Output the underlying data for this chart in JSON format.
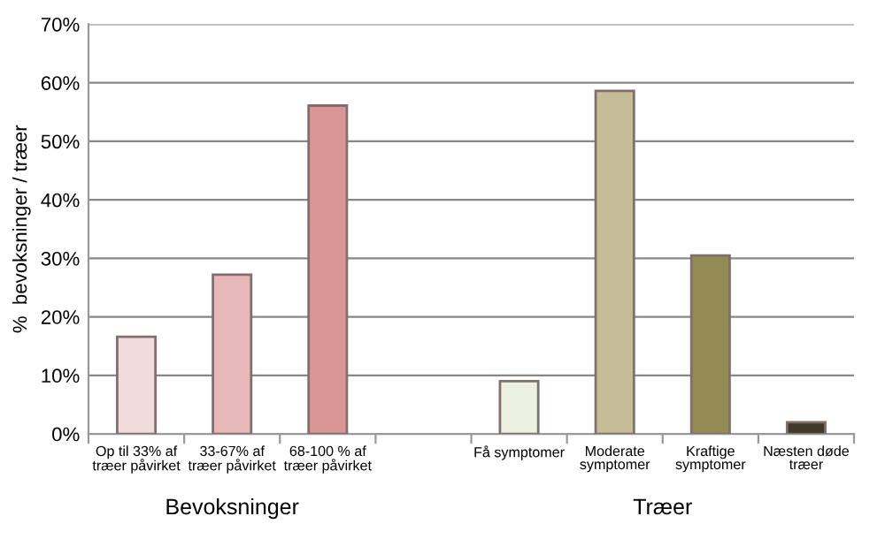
{
  "chart_data": {
    "type": "bar",
    "categories": [
      "Op til 33% af\ntræer påvirket",
      "33-67% af\ntræer påvirket",
      "68-100 % af\ntræer påvirket",
      null,
      "Få symptomer",
      "Moderate\nsymptomer",
      "Kraftige\nsymptomer",
      "Næsten døde\ntræer"
    ],
    "values": [
      16.6,
      27.2,
      56.1,
      null,
      9.0,
      58.6,
      30.5,
      2.0
    ],
    "colors": [
      "#f2dcdb",
      "#e6b9b8",
      "#d99694",
      "#ffffff",
      "#ebf1de",
      "#c4bd97",
      "#948a54",
      "#3f3a26"
    ],
    "ylabel": "%  bevoksninger / træer",
    "ylim": [
      0,
      70
    ],
    "yticks": [
      {
        "value": 0,
        "label": "0%"
      },
      {
        "value": 10,
        "label": "10%"
      },
      {
        "value": 20,
        "label": "20%"
      },
      {
        "value": 30,
        "label": "30%"
      },
      {
        "value": 40,
        "label": "40%"
      },
      {
        "value": 50,
        "label": "50%"
      },
      {
        "value": 60,
        "label": "60%"
      },
      {
        "value": 70,
        "label": "70%"
      }
    ],
    "grid": "y",
    "annotations": [
      "Bevoksninger",
      "Træer"
    ]
  }
}
